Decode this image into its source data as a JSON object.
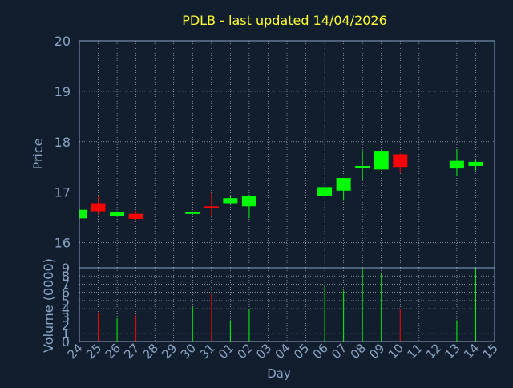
{
  "chart_data": {
    "type": "candlestick",
    "title": "PDLB - last updated 14/04/2026",
    "ylabel": "Price",
    "volume_label": "Volume (0000)",
    "xlabel": "Day",
    "ylim": [
      15.5,
      20
    ],
    "yticks": [
      16,
      17,
      18,
      19,
      20
    ],
    "volume_ylim": [
      0,
      9
    ],
    "volume_yticks": [
      0,
      1,
      2,
      3,
      4,
      5,
      6,
      7,
      8,
      9
    ],
    "grid": true,
    "colors": {
      "background": "#111e2e",
      "axis": "#8aa4c2",
      "grid": "#c8d0da",
      "title": "#ffff33",
      "up": "#00ff00",
      "down": "#ff0000",
      "text": "#8aa4c2"
    },
    "x_labels": [
      "24",
      "25",
      "26",
      "27",
      "28",
      "29",
      "30",
      "31",
      "01",
      "02",
      "03",
      "04",
      "05",
      "06",
      "07",
      "08",
      "09",
      "10",
      "11",
      "12",
      "13",
      "14",
      "15"
    ],
    "candles": [
      {
        "day": "24",
        "open": 16.48,
        "high": 16.68,
        "low": 16.48,
        "close": 16.65,
        "volume": 0
      },
      {
        "day": "25",
        "open": 16.78,
        "high": 16.92,
        "low": 16.55,
        "close": 16.62,
        "volume": 3.5
      },
      {
        "day": "26",
        "open": 16.53,
        "high": 16.62,
        "low": 16.53,
        "close": 16.6,
        "volume": 2.8
      },
      {
        "day": "27",
        "open": 16.57,
        "high": 16.63,
        "low": 16.44,
        "close": 16.47,
        "volume": 3.2
      },
      {
        "day": "30",
        "open": 16.57,
        "high": 16.62,
        "low": 16.57,
        "close": 16.6,
        "volume": 4.2
      },
      {
        "day": "31",
        "open": 16.72,
        "high": 16.98,
        "low": 16.52,
        "close": 16.68,
        "volume": 5.8
      },
      {
        "day": "01",
        "open": 16.78,
        "high": 16.92,
        "low": 16.77,
        "close": 16.88,
        "volume": 2.6
      },
      {
        "day": "02",
        "open": 16.72,
        "high": 16.95,
        "low": 16.48,
        "close": 16.93,
        "volume": 4.0
      },
      {
        "day": "06",
        "open": 16.93,
        "high": 17.1,
        "low": 16.93,
        "close": 17.1,
        "volume": 7.0
      },
      {
        "day": "07",
        "open": 17.03,
        "high": 17.28,
        "low": 16.83,
        "close": 17.28,
        "volume": 6.2
      },
      {
        "day": "08",
        "open": 17.48,
        "high": 17.83,
        "low": 17.23,
        "close": 17.52,
        "volume": 9.0
      },
      {
        "day": "09",
        "open": 17.45,
        "high": 17.83,
        "low": 17.45,
        "close": 17.82,
        "volume": 8.4
      },
      {
        "day": "10",
        "open": 17.75,
        "high": 17.77,
        "low": 17.38,
        "close": 17.5,
        "volume": 4.0
      },
      {
        "day": "13",
        "open": 17.47,
        "high": 17.85,
        "low": 17.32,
        "close": 17.62,
        "volume": 2.6
      },
      {
        "day": "14",
        "open": 17.52,
        "high": 17.65,
        "low": 17.43,
        "close": 17.6,
        "volume": 9.0
      }
    ]
  }
}
